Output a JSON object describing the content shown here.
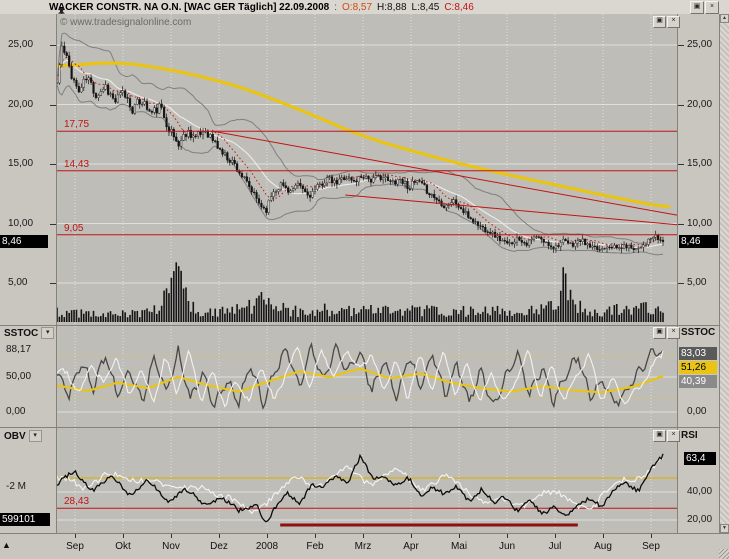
{
  "window": {
    "title": "WACKER CONSTR. NA O.N. [WAC GER  Täglich] 22.09.2008",
    "ohlc_sep": ":",
    "open": "O:8,57",
    "high": "H:8,88",
    "low": "L:8,45",
    "close": "C:8,46",
    "copyright": "© www.tradesignalonline.com"
  },
  "glyphs": {
    "maximize": "▣",
    "close": "×",
    "dropdown": "▾",
    "up": "▲",
    "down": "▼",
    "corner": "▲"
  },
  "colors": {
    "accent_yellow": "#e9c414",
    "signal_red": "#c11414",
    "candle_black": "#141414",
    "band_gray": "#7f7f7f",
    "white_line": "#f2f2f2"
  },
  "price_panel": {
    "left_axis": [
      {
        "label": "25,00",
        "value": 25
      },
      {
        "label": "20,00",
        "value": 20
      },
      {
        "label": "15,00",
        "value": 15
      },
      {
        "label": "10,00",
        "value": 10
      },
      {
        "label": "5,00",
        "value": 5
      }
    ],
    "right_axis": [
      {
        "label": "25,00",
        "value": 25
      },
      {
        "label": "20,00",
        "value": 20
      },
      {
        "label": "15,00",
        "value": 15
      },
      {
        "label": "10,00",
        "value": 10
      },
      {
        "label": "5,00",
        "value": 5
      }
    ],
    "levels": [
      {
        "label": "17,75",
        "value": 17.75
      },
      {
        "label": "14,43",
        "value": 14.43
      },
      {
        "label": "9,05",
        "value": 9.05
      }
    ],
    "last_price_box": "8,46"
  },
  "sstoc_panel": {
    "name": "SSTOC",
    "right_name": "SSTOC",
    "left_axis": [
      {
        "label": "88,17",
        "value": 88.17
      },
      {
        "label": "50,00",
        "value": 50
      },
      {
        "label": "0,00",
        "value": 0
      }
    ],
    "right_axis_zero": "0,00",
    "value_boxes": [
      {
        "label": "83,03",
        "bg": "#5a5a5a",
        "fg": "#ffffff"
      },
      {
        "label": "51,26",
        "bg": "#e9c414",
        "fg": "#000000"
      },
      {
        "label": "40,39",
        "bg": "#8a8a8a",
        "fg": "#ffffff"
      }
    ]
  },
  "obv_panel": {
    "name": "OBV",
    "right_name": "RSI",
    "left_value": "-2 M",
    "red_label": "28,43",
    "obv_value_box": "599101",
    "rsi_value_box": "63,4",
    "rsi_axis": [
      {
        "label": "40,00",
        "value": 40
      },
      {
        "label": "20,00",
        "value": 20
      }
    ]
  },
  "time_axis": {
    "labels": [
      "Sep",
      "Okt",
      "Nov",
      "Dez",
      "2008",
      "Feb",
      "Mrz",
      "Apr",
      "Mai",
      "Jun",
      "Jul",
      "Aug",
      "Sep"
    ]
  },
  "chart_data": [
    {
      "type": "candlestick",
      "title": "WACKER CONSTR. NA O.N. [WAC GER Täglich]",
      "ylim": [
        3.5,
        27.5
      ],
      "x_axis_months": [
        "Sep",
        "Okt",
        "Nov",
        "Dez",
        "2008",
        "Feb",
        "Mrz",
        "Apr",
        "Mai",
        "Jun",
        "Jul",
        "Aug",
        "Sep"
      ],
      "levels": [
        17.75,
        14.43,
        9.05
      ],
      "last_close": 8.46,
      "candles": 250,
      "seed": 11,
      "close_anchors": [
        [
          0,
          21.8
        ],
        [
          0.008,
          24.8
        ],
        [
          0.02,
          23.2
        ],
        [
          0.035,
          21.0
        ],
        [
          0.05,
          22.3
        ],
        [
          0.065,
          20.8
        ],
        [
          0.08,
          21.6
        ],
        [
          0.095,
          20.2
        ],
        [
          0.11,
          21.0
        ],
        [
          0.125,
          19.6
        ],
        [
          0.14,
          20.4
        ],
        [
          0.155,
          19.2
        ],
        [
          0.17,
          19.8
        ],
        [
          0.185,
          18.0
        ],
        [
          0.2,
          16.6
        ],
        [
          0.215,
          17.8
        ],
        [
          0.23,
          17.2
        ],
        [
          0.245,
          17.9
        ],
        [
          0.26,
          16.8
        ],
        [
          0.275,
          15.8
        ],
        [
          0.29,
          15.2
        ],
        [
          0.305,
          14.0
        ],
        [
          0.32,
          12.8
        ],
        [
          0.335,
          11.6
        ],
        [
          0.345,
          11.1
        ],
        [
          0.355,
          12.6
        ],
        [
          0.37,
          13.3
        ],
        [
          0.385,
          12.7
        ],
        [
          0.4,
          13.2
        ],
        [
          0.415,
          12.3
        ],
        [
          0.43,
          13.0
        ],
        [
          0.445,
          13.8
        ],
        [
          0.46,
          13.3
        ],
        [
          0.475,
          14.0
        ],
        [
          0.49,
          13.5
        ],
        [
          0.505,
          14.1
        ],
        [
          0.52,
          13.6
        ],
        [
          0.535,
          14.0
        ],
        [
          0.55,
          13.4
        ],
        [
          0.565,
          13.8
        ],
        [
          0.58,
          13.1
        ],
        [
          0.595,
          13.5
        ],
        [
          0.61,
          12.8
        ],
        [
          0.625,
          12.1
        ],
        [
          0.64,
          11.5
        ],
        [
          0.655,
          11.9
        ],
        [
          0.67,
          11.0
        ],
        [
          0.685,
          10.3
        ],
        [
          0.7,
          9.7
        ],
        [
          0.715,
          9.3
        ],
        [
          0.73,
          8.7
        ],
        [
          0.745,
          8.2
        ],
        [
          0.76,
          8.8
        ],
        [
          0.775,
          8.3
        ],
        [
          0.79,
          8.9
        ],
        [
          0.805,
          8.4
        ],
        [
          0.82,
          8.0
        ],
        [
          0.835,
          8.5
        ],
        [
          0.85,
          8.2
        ],
        [
          0.865,
          8.6
        ],
        [
          0.88,
          8.0
        ],
        [
          0.895,
          7.8
        ],
        [
          0.91,
          8.2
        ],
        [
          0.925,
          7.9
        ],
        [
          0.94,
          8.1
        ],
        [
          0.955,
          7.9
        ],
        [
          0.97,
          8.3
        ],
        [
          0.985,
          8.9
        ],
        [
          1,
          8.46
        ]
      ],
      "ma200_anchors": [
        [
          0,
          23.2
        ],
        [
          0.1,
          23.6
        ],
        [
          0.2,
          22.8
        ],
        [
          0.3,
          21.5
        ],
        [
          0.4,
          19.5
        ],
        [
          0.5,
          17.3
        ],
        [
          0.6,
          15.8
        ],
        [
          0.7,
          14.5
        ],
        [
          0.8,
          13.4
        ],
        [
          0.9,
          12.3
        ],
        [
          1,
          11.3
        ]
      ],
      "volume_anchors": [
        [
          0,
          0.28
        ],
        [
          0.05,
          0.2
        ],
        [
          0.1,
          0.18
        ],
        [
          0.14,
          0.22
        ],
        [
          0.18,
          0.55
        ],
        [
          0.195,
          1.0
        ],
        [
          0.205,
          0.85
        ],
        [
          0.215,
          0.5
        ],
        [
          0.23,
          0.28
        ],
        [
          0.26,
          0.22
        ],
        [
          0.3,
          0.3
        ],
        [
          0.33,
          0.45
        ],
        [
          0.345,
          0.55
        ],
        [
          0.36,
          0.35
        ],
        [
          0.4,
          0.26
        ],
        [
          0.44,
          0.3
        ],
        [
          0.48,
          0.26
        ],
        [
          0.52,
          0.32
        ],
        [
          0.56,
          0.24
        ],
        [
          0.6,
          0.3
        ],
        [
          0.64,
          0.22
        ],
        [
          0.68,
          0.28
        ],
        [
          0.72,
          0.3
        ],
        [
          0.76,
          0.24
        ],
        [
          0.8,
          0.3
        ],
        [
          0.825,
          0.5
        ],
        [
          0.838,
          1.0
        ],
        [
          0.85,
          0.45
        ],
        [
          0.88,
          0.25
        ],
        [
          0.92,
          0.3
        ],
        [
          0.96,
          0.33
        ],
        [
          1,
          0.38
        ]
      ],
      "trendlines": [
        [
          0.252,
          17.75,
          1.0,
          10.7
        ],
        [
          0.465,
          12.4,
          1.0,
          9.9
        ]
      ]
    },
    {
      "type": "line",
      "name": "SSTOC",
      "ylim": [
        0,
        100
      ],
      "levels_dotted": [
        80,
        20
      ],
      "series": [
        {
          "name": "%K",
          "color": "#484848",
          "width": 1.3,
          "jitter": 8,
          "wiggle": 6,
          "freq": 290,
          "anchors": [
            [
              0,
              55
            ],
            [
              0.02,
              25
            ],
            [
              0.04,
              72
            ],
            [
              0.06,
              35
            ],
            [
              0.08,
              82
            ],
            [
              0.1,
              22
            ],
            [
              0.12,
              60
            ],
            [
              0.14,
              14
            ],
            [
              0.16,
              75
            ],
            [
              0.18,
              30
            ],
            [
              0.2,
              85
            ],
            [
              0.22,
              18
            ],
            [
              0.24,
              55
            ],
            [
              0.26,
              10
            ],
            [
              0.28,
              45
            ],
            [
              0.3,
              14
            ],
            [
              0.32,
              68
            ],
            [
              0.34,
              12
            ],
            [
              0.36,
              60
            ],
            [
              0.38,
              88
            ],
            [
              0.4,
              35
            ],
            [
              0.42,
              90
            ],
            [
              0.44,
              45
            ],
            [
              0.46,
              92
            ],
            [
              0.48,
              58
            ],
            [
              0.5,
              86
            ],
            [
              0.52,
              30
            ],
            [
              0.54,
              75
            ],
            [
              0.56,
              20
            ],
            [
              0.58,
              80
            ],
            [
              0.6,
              35
            ],
            [
              0.62,
              85
            ],
            [
              0.64,
              25
            ],
            [
              0.66,
              68
            ],
            [
              0.68,
              14
            ],
            [
              0.7,
              58
            ],
            [
              0.72,
              10
            ],
            [
              0.74,
              48
            ],
            [
              0.76,
              84
            ],
            [
              0.78,
              24
            ],
            [
              0.8,
              64
            ],
            [
              0.82,
              14
            ],
            [
              0.84,
              55
            ],
            [
              0.86,
              80
            ],
            [
              0.88,
              20
            ],
            [
              0.9,
              45
            ],
            [
              0.92,
              12
            ],
            [
              0.94,
              32
            ],
            [
              0.96,
              58
            ],
            [
              0.98,
              82
            ],
            [
              1,
              88.17
            ]
          ]
        },
        {
          "name": "slow",
          "color": "#e9c414",
          "width": 2.2,
          "jitter": 0,
          "wiggle": 0,
          "freq": 0,
          "anchors": [
            [
              0,
              38
            ],
            [
              0.05,
              30
            ],
            [
              0.1,
              42
            ],
            [
              0.15,
              34
            ],
            [
              0.2,
              50
            ],
            [
              0.25,
              38
            ],
            [
              0.3,
              29
            ],
            [
              0.35,
              44
            ],
            [
              0.4,
              58
            ],
            [
              0.45,
              50
            ],
            [
              0.5,
              62
            ],
            [
              0.55,
              48
            ],
            [
              0.6,
              55
            ],
            [
              0.65,
              42
            ],
            [
              0.7,
              34
            ],
            [
              0.75,
              29
            ],
            [
              0.8,
              37
            ],
            [
              0.85,
              31
            ],
            [
              0.9,
              28
            ],
            [
              0.95,
              36
            ],
            [
              1,
              51.26
            ]
          ]
        },
        {
          "name": "%D",
          "color": "#f2f2f2",
          "width": 1.1,
          "jitter": 6,
          "wiggle": 5,
          "freq": 180,
          "xshift": 0.018,
          "same_as": 0
        }
      ],
      "last_values": {
        "k": 88.17,
        "d": 83.03,
        "slow": 51.26,
        "box3": 40.39
      }
    },
    {
      "type": "line",
      "name": "OBV+RSI",
      "obv": {
        "color": "#0c0c0c",
        "last_label": "599101",
        "anchors": [
          [
            0,
            52
          ],
          [
            0.03,
            68
          ],
          [
            0.06,
            48
          ],
          [
            0.09,
            60
          ],
          [
            0.12,
            44
          ],
          [
            0.15,
            56
          ],
          [
            0.18,
            34
          ],
          [
            0.21,
            48
          ],
          [
            0.24,
            28
          ],
          [
            0.27,
            40
          ],
          [
            0.3,
            18
          ],
          [
            0.33,
            30
          ],
          [
            0.345,
            7
          ],
          [
            0.36,
            22
          ],
          [
            0.38,
            42
          ],
          [
            0.4,
            34
          ],
          [
            0.42,
            52
          ],
          [
            0.44,
            46
          ],
          [
            0.46,
            66
          ],
          [
            0.48,
            58
          ],
          [
            0.5,
            84
          ],
          [
            0.52,
            60
          ],
          [
            0.54,
            68
          ],
          [
            0.56,
            50
          ],
          [
            0.58,
            58
          ],
          [
            0.6,
            42
          ],
          [
            0.62,
            52
          ],
          [
            0.64,
            38
          ],
          [
            0.66,
            50
          ],
          [
            0.68,
            36
          ],
          [
            0.7,
            46
          ],
          [
            0.72,
            28
          ],
          [
            0.74,
            40
          ],
          [
            0.76,
            22
          ],
          [
            0.78,
            32
          ],
          [
            0.8,
            16
          ],
          [
            0.82,
            30
          ],
          [
            0.84,
            12
          ],
          [
            0.86,
            26
          ],
          [
            0.88,
            38
          ],
          [
            0.9,
            28
          ],
          [
            0.92,
            44
          ],
          [
            0.94,
            54
          ],
          [
            0.96,
            48
          ],
          [
            0.98,
            70
          ],
          [
            1,
            86
          ]
        ]
      },
      "rsi": {
        "color": "#f4f4f4",
        "last": 63.4,
        "ylim": [
          0,
          100
        ],
        "anchors": [
          [
            0,
            50
          ],
          [
            0.04,
            42
          ],
          [
            0.08,
            55
          ],
          [
            0.12,
            46
          ],
          [
            0.16,
            52
          ],
          [
            0.2,
            38
          ],
          [
            0.24,
            46
          ],
          [
            0.28,
            34
          ],
          [
            0.32,
            27
          ],
          [
            0.36,
            38
          ],
          [
            0.4,
            50
          ],
          [
            0.44,
            46
          ],
          [
            0.48,
            56
          ],
          [
            0.52,
            48
          ],
          [
            0.56,
            54
          ],
          [
            0.6,
            44
          ],
          [
            0.64,
            50
          ],
          [
            0.68,
            40
          ],
          [
            0.72,
            34
          ],
          [
            0.76,
            29
          ],
          [
            0.8,
            41
          ],
          [
            0.84,
            34
          ],
          [
            0.88,
            30
          ],
          [
            0.92,
            44
          ],
          [
            0.96,
            52
          ],
          [
            1,
            63.4
          ]
        ]
      },
      "rsi_levels": {
        "yellow": 50,
        "red": 28.43
      },
      "support_segment": {
        "x1": 0.36,
        "x2": 0.84
      }
    }
  ]
}
